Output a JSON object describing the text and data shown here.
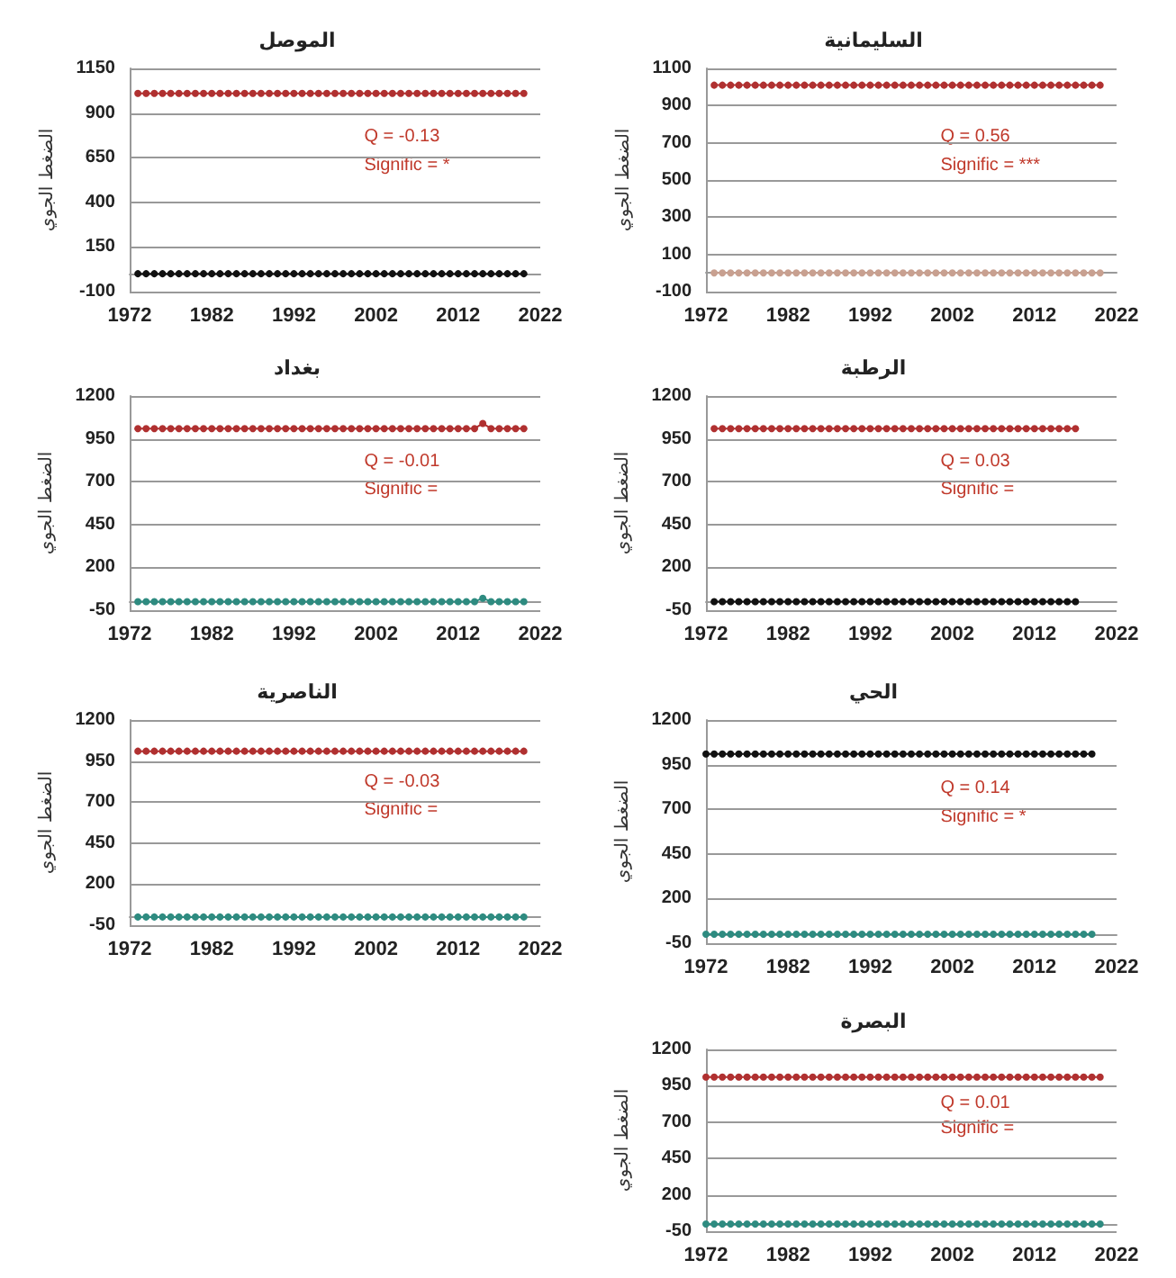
{
  "chart_data": [
    {
      "type": "line",
      "title": "الموصل",
      "ylabel": "الضغط الجوي",
      "annotations": [
        "Q = -0.13",
        "Signific = *"
      ],
      "xlim": [
        1972,
        2022
      ],
      "xticks": [
        1972,
        1982,
        1992,
        2002,
        2012,
        2022
      ],
      "ylim": [
        -100,
        1150
      ],
      "yticks": [
        -100,
        150,
        400,
        650,
        900,
        1150
      ],
      "grid": "y",
      "marker": "circle",
      "x": [
        1973,
        1974,
        1975,
        1976,
        1977,
        1978,
        1979,
        1980,
        1981,
        1982,
        1983,
        1984,
        1985,
        1986,
        1987,
        1988,
        1989,
        1990,
        1991,
        1992,
        1993,
        1994,
        1995,
        1996,
        1997,
        1998,
        1999,
        2000,
        2001,
        2002,
        2003,
        2004,
        2005,
        2006,
        2007,
        2008,
        2009,
        2010,
        2011,
        2012,
        2013,
        2014,
        2015,
        2016,
        2017,
        2018,
        2019,
        2020
      ],
      "series": [
        {
          "color": "#b03030",
          "values": [
            1010,
            1010,
            1010,
            1010,
            1010,
            1010,
            1010,
            1010,
            1010,
            1010,
            1010,
            1010,
            1010,
            1010,
            1010,
            1010,
            1010,
            1010,
            1010,
            1010,
            1010,
            1010,
            1010,
            1010,
            1010,
            1010,
            1010,
            1010,
            1010,
            1010,
            1010,
            1010,
            1010,
            1010,
            1010,
            1010,
            1010,
            1010,
            1010,
            1010,
            1010,
            1010,
            1010,
            1010,
            1010,
            1010,
            1010,
            1010
          ]
        },
        {
          "color": "#111111",
          "values": [
            0,
            0,
            0,
            0,
            0,
            0,
            0,
            0,
            0,
            0,
            0,
            0,
            0,
            0,
            0,
            0,
            0,
            0,
            0,
            0,
            0,
            0,
            0,
            0,
            0,
            0,
            0,
            0,
            0,
            0,
            0,
            0,
            0,
            0,
            0,
            0,
            0,
            0,
            0,
            0,
            0,
            0,
            0,
            0,
            0,
            0,
            0,
            0
          ]
        }
      ]
    },
    {
      "type": "line",
      "title": "السليمانية",
      "ylabel": "الضغط الجوي",
      "annotations": [
        "Q = 0.56",
        "Signific = ***"
      ],
      "xlim": [
        1972,
        2022
      ],
      "xticks": [
        1972,
        1982,
        1992,
        2002,
        2012,
        2022
      ],
      "ylim": [
        -100,
        1100
      ],
      "yticks": [
        -100,
        100,
        300,
        500,
        700,
        900,
        1100
      ],
      "grid": "y",
      "marker": "circle",
      "x": [
        1973,
        1974,
        1975,
        1976,
        1977,
        1978,
        1979,
        1980,
        1981,
        1982,
        1983,
        1984,
        1985,
        1986,
        1987,
        1988,
        1989,
        1990,
        1991,
        1992,
        1993,
        1994,
        1995,
        1996,
        1997,
        1998,
        1999,
        2000,
        2001,
        2002,
        2003,
        2004,
        2005,
        2006,
        2007,
        2008,
        2009,
        2010,
        2011,
        2012,
        2013,
        2014,
        2015,
        2016,
        2017,
        2018,
        2019,
        2020
      ],
      "series": [
        {
          "color": "#b03030",
          "values": [
            1010,
            1010,
            1010,
            1010,
            1010,
            1010,
            1010,
            1010,
            1010,
            1010,
            1010,
            1010,
            1010,
            1010,
            1010,
            1010,
            1010,
            1010,
            1010,
            1010,
            1010,
            1010,
            1010,
            1010,
            1010,
            1010,
            1010,
            1010,
            1010,
            1010,
            1010,
            1010,
            1010,
            1010,
            1010,
            1010,
            1010,
            1010,
            1010,
            1010,
            1010,
            1010,
            1010,
            1010,
            1010,
            1010,
            1010,
            1010
          ]
        },
        {
          "color": "#c8a090",
          "values": [
            0,
            0,
            0,
            0,
            0,
            0,
            0,
            0,
            0,
            0,
            0,
            0,
            0,
            0,
            0,
            0,
            0,
            0,
            0,
            0,
            0,
            0,
            0,
            0,
            0,
            0,
            0,
            0,
            0,
            0,
            0,
            0,
            0,
            0,
            0,
            0,
            0,
            0,
            0,
            0,
            0,
            0,
            0,
            0,
            0,
            0,
            0,
            0
          ]
        }
      ]
    },
    {
      "type": "line",
      "title": "بغداد",
      "ylabel": "الضغط الجوي",
      "annotations": [
        "Q = -0.01",
        "Signific ="
      ],
      "xlim": [
        1972,
        2022
      ],
      "xticks": [
        1972,
        1982,
        1992,
        2002,
        2012,
        2022
      ],
      "ylim": [
        -50,
        1200
      ],
      "yticks": [
        -50,
        200,
        450,
        700,
        950,
        1200
      ],
      "grid": "y",
      "marker": "circle",
      "x": [
        1973,
        1974,
        1975,
        1976,
        1977,
        1978,
        1979,
        1980,
        1981,
        1982,
        1983,
        1984,
        1985,
        1986,
        1987,
        1988,
        1989,
        1990,
        1991,
        1992,
        1993,
        1994,
        1995,
        1996,
        1997,
        1998,
        1999,
        2000,
        2001,
        2002,
        2003,
        2004,
        2005,
        2006,
        2007,
        2008,
        2009,
        2010,
        2011,
        2012,
        2013,
        2014,
        2015,
        2016,
        2017,
        2018,
        2019,
        2020
      ],
      "series": [
        {
          "color": "#b03030",
          "values": [
            1010,
            1010,
            1010,
            1010,
            1010,
            1010,
            1010,
            1010,
            1010,
            1010,
            1010,
            1010,
            1010,
            1010,
            1010,
            1010,
            1010,
            1010,
            1010,
            1010,
            1010,
            1010,
            1010,
            1010,
            1010,
            1010,
            1010,
            1010,
            1010,
            1010,
            1010,
            1010,
            1010,
            1010,
            1010,
            1010,
            1010,
            1010,
            1010,
            1010,
            1010,
            1010,
            1040,
            1010,
            1010,
            1010,
            1010,
            1010
          ]
        },
        {
          "color": "#2e8b80",
          "values": [
            0,
            0,
            0,
            0,
            0,
            0,
            0,
            0,
            0,
            0,
            0,
            0,
            0,
            0,
            0,
            0,
            0,
            0,
            0,
            0,
            0,
            0,
            0,
            0,
            0,
            0,
            0,
            0,
            0,
            0,
            0,
            0,
            0,
            0,
            0,
            0,
            0,
            0,
            0,
            0,
            0,
            0,
            20,
            0,
            0,
            0,
            0,
            0
          ]
        }
      ]
    },
    {
      "type": "line",
      "title": "الرطبة",
      "ylabel": "الضغط الجوي",
      "annotations": [
        "Q = 0.03",
        "Signific ="
      ],
      "xlim": [
        1972,
        2022
      ],
      "xticks": [
        1972,
        1982,
        1992,
        2002,
        2012,
        2022
      ],
      "ylim": [
        -50,
        1200
      ],
      "yticks": [
        -50,
        200,
        450,
        700,
        950,
        1200
      ],
      "grid": "y",
      "marker": "circle",
      "x": [
        1973,
        1974,
        1975,
        1976,
        1977,
        1978,
        1979,
        1980,
        1981,
        1982,
        1983,
        1984,
        1985,
        1986,
        1987,
        1988,
        1989,
        1990,
        1991,
        1992,
        1993,
        1994,
        1995,
        1996,
        1997,
        1998,
        1999,
        2000,
        2001,
        2002,
        2003,
        2004,
        2005,
        2006,
        2007,
        2008,
        2009,
        2010,
        2011,
        2012,
        2013,
        2014,
        2015,
        2016,
        2017
      ],
      "series": [
        {
          "color": "#b03030",
          "values": [
            1010,
            1010,
            1010,
            1010,
            1010,
            1010,
            1010,
            1010,
            1010,
            1010,
            1010,
            1010,
            1010,
            1010,
            1010,
            1010,
            1010,
            1010,
            1010,
            1010,
            1010,
            1010,
            1010,
            1010,
            1010,
            1010,
            1010,
            1010,
            1010,
            1010,
            1010,
            1010,
            1010,
            1010,
            1010,
            1010,
            1010,
            1010,
            1010,
            1010,
            1010,
            1010,
            1010,
            1010,
            1010
          ]
        },
        {
          "color": "#111111",
          "values": [
            0,
            0,
            0,
            0,
            0,
            0,
            0,
            0,
            0,
            0,
            0,
            0,
            0,
            0,
            0,
            0,
            0,
            0,
            0,
            0,
            0,
            0,
            0,
            0,
            0,
            0,
            0,
            0,
            0,
            0,
            0,
            0,
            0,
            0,
            0,
            0,
            0,
            0,
            0,
            0,
            0,
            0,
            0,
            0,
            0
          ]
        }
      ]
    },
    {
      "type": "line",
      "title": "الناصرية",
      "ylabel": "الضغط الجوي",
      "annotations": [
        "Q = -0.03",
        "Signific ="
      ],
      "xlim": [
        1972,
        2022
      ],
      "xticks": [
        1972,
        1982,
        1992,
        2002,
        2012,
        2022
      ],
      "ylim": [
        -50,
        1200
      ],
      "yticks": [
        -50,
        200,
        450,
        700,
        950,
        1200
      ],
      "grid": "y",
      "marker": "circle",
      "x": [
        1973,
        1974,
        1975,
        1976,
        1977,
        1978,
        1979,
        1980,
        1981,
        1982,
        1983,
        1984,
        1985,
        1986,
        1987,
        1988,
        1989,
        1990,
        1991,
        1992,
        1993,
        1994,
        1995,
        1996,
        1997,
        1998,
        1999,
        2000,
        2001,
        2002,
        2003,
        2004,
        2005,
        2006,
        2007,
        2008,
        2009,
        2010,
        2011,
        2012,
        2013,
        2014,
        2015,
        2016,
        2017,
        2018,
        2019,
        2020
      ],
      "series": [
        {
          "color": "#b03030",
          "values": [
            1010,
            1010,
            1010,
            1010,
            1010,
            1010,
            1010,
            1010,
            1010,
            1010,
            1010,
            1010,
            1010,
            1010,
            1010,
            1010,
            1010,
            1010,
            1010,
            1010,
            1010,
            1010,
            1010,
            1010,
            1010,
            1010,
            1010,
            1010,
            1010,
            1010,
            1010,
            1010,
            1010,
            1010,
            1010,
            1010,
            1010,
            1010,
            1010,
            1010,
            1010,
            1010,
            1010,
            1010,
            1010,
            1010,
            1010,
            1010
          ]
        },
        {
          "color": "#2e8b80",
          "values": [
            0,
            0,
            0,
            0,
            0,
            0,
            0,
            0,
            0,
            0,
            0,
            0,
            0,
            0,
            0,
            0,
            0,
            0,
            0,
            0,
            0,
            0,
            0,
            0,
            0,
            0,
            0,
            0,
            0,
            0,
            0,
            0,
            0,
            0,
            0,
            0,
            0,
            0,
            0,
            0,
            0,
            0,
            0,
            0,
            0,
            0,
            0,
            0
          ]
        }
      ]
    },
    {
      "type": "line",
      "title": "الحي",
      "ylabel": "الضغط الجوي",
      "annotations": [
        "Q = 0.14",
        "Signific = *"
      ],
      "xlim": [
        1972,
        2022
      ],
      "xticks": [
        1972,
        1982,
        1992,
        2002,
        2012,
        2022
      ],
      "ylim": [
        -50,
        1200
      ],
      "yticks": [
        -50,
        200,
        450,
        700,
        950,
        1200
      ],
      "grid": "y",
      "marker": "circle",
      "x": [
        1972,
        1973,
        1974,
        1975,
        1976,
        1977,
        1978,
        1979,
        1980,
        1981,
        1982,
        1983,
        1984,
        1985,
        1986,
        1987,
        1988,
        1989,
        1990,
        1991,
        1992,
        1993,
        1994,
        1995,
        1996,
        1997,
        1998,
        1999,
        2000,
        2001,
        2002,
        2003,
        2004,
        2005,
        2006,
        2007,
        2008,
        2009,
        2010,
        2011,
        2012,
        2013,
        2014,
        2015,
        2016,
        2017,
        2018,
        2019
      ],
      "series": [
        {
          "color": "#111111",
          "values": [
            1010,
            1010,
            1010,
            1010,
            1010,
            1010,
            1010,
            1010,
            1010,
            1010,
            1010,
            1010,
            1010,
            1010,
            1010,
            1010,
            1010,
            1010,
            1010,
            1010,
            1010,
            1010,
            1010,
            1010,
            1010,
            1010,
            1010,
            1010,
            1010,
            1010,
            1010,
            1010,
            1010,
            1010,
            1010,
            1010,
            1010,
            1010,
            1010,
            1010,
            1010,
            1010,
            1010,
            1010,
            1010,
            1010,
            1010,
            1010
          ]
        },
        {
          "color": "#2e8b80",
          "values": [
            0,
            0,
            0,
            0,
            0,
            0,
            0,
            0,
            0,
            0,
            0,
            0,
            0,
            0,
            0,
            0,
            0,
            0,
            0,
            0,
            0,
            0,
            0,
            0,
            0,
            0,
            0,
            0,
            0,
            0,
            0,
            0,
            0,
            0,
            0,
            0,
            0,
            0,
            0,
            0,
            0,
            0,
            0,
            0,
            0,
            0,
            0,
            0
          ]
        }
      ]
    },
    {
      "type": "line",
      "title": "البصرة",
      "ylabel": "الضغط الجوي",
      "annotations": [
        "Q = 0.01",
        "Signific ="
      ],
      "xlim": [
        1972,
        2022
      ],
      "xticks": [
        1972,
        1982,
        1992,
        2002,
        2012,
        2022
      ],
      "ylim": [
        -50,
        1200
      ],
      "yticks": [
        -50,
        200,
        450,
        700,
        950,
        1200
      ],
      "grid": "y",
      "marker": "circle",
      "x": [
        1972,
        1973,
        1974,
        1975,
        1976,
        1977,
        1978,
        1979,
        1980,
        1981,
        1982,
        1983,
        1984,
        1985,
        1986,
        1987,
        1988,
        1989,
        1990,
        1991,
        1992,
        1993,
        1994,
        1995,
        1996,
        1997,
        1998,
        1999,
        2000,
        2001,
        2002,
        2003,
        2004,
        2005,
        2006,
        2007,
        2008,
        2009,
        2010,
        2011,
        2012,
        2013,
        2014,
        2015,
        2016,
        2017,
        2018,
        2019,
        2020
      ],
      "series": [
        {
          "color": "#b03030",
          "values": [
            1010,
            1010,
            1010,
            1010,
            1010,
            1010,
            1010,
            1010,
            1010,
            1010,
            1010,
            1010,
            1010,
            1010,
            1010,
            1010,
            1010,
            1010,
            1010,
            1010,
            1010,
            1010,
            1010,
            1010,
            1010,
            1010,
            1010,
            1010,
            1010,
            1010,
            1010,
            1010,
            1010,
            1010,
            1010,
            1010,
            1010,
            1010,
            1010,
            1010,
            1010,
            1010,
            1010,
            1010,
            1010,
            1010,
            1010,
            1010,
            1010
          ]
        },
        {
          "color": "#2e8b80",
          "values": [
            0,
            0,
            0,
            0,
            0,
            0,
            0,
            0,
            0,
            0,
            0,
            0,
            0,
            0,
            0,
            0,
            0,
            0,
            0,
            0,
            0,
            0,
            0,
            0,
            0,
            0,
            0,
            0,
            0,
            0,
            0,
            0,
            0,
            0,
            0,
            0,
            0,
            0,
            0,
            0,
            0,
            0,
            0,
            0,
            0,
            0,
            0,
            0,
            0
          ]
        }
      ]
    }
  ]
}
